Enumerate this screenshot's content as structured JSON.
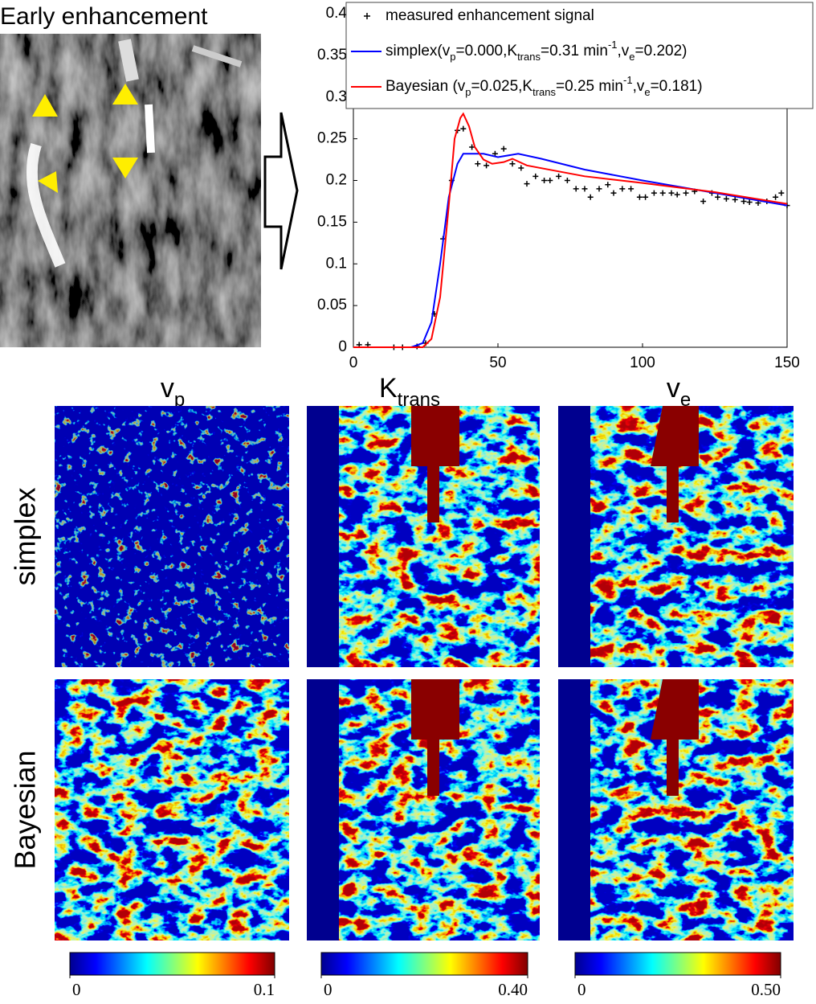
{
  "figure": {
    "image_title": "Early enhancement",
    "columns": [
      [
        "v",
        {
          "sub": "p"
        }
      ],
      [
        "K",
        {
          "sub": "trans"
        }
      ],
      [
        "v",
        {
          "sub": "e"
        }
      ]
    ],
    "rows": [
      "simplex",
      "Bayesian"
    ],
    "colorbars": [
      {
        "lim": [
          0,
          0.1
        ],
        "ticks": [
          0,
          0.1
        ]
      },
      {
        "lim": [
          0,
          0.4
        ],
        "ticks": [
          0,
          {
            "value": 0.4,
            "label": "0.40"
          }
        ]
      },
      {
        "lim": [
          0,
          0.5
        ],
        "ticks": [
          0,
          {
            "value": 0.5,
            "label": "0.50"
          }
        ]
      }
    ]
  },
  "chart_data": {
    "type": "line",
    "xlim": [
      0,
      150
    ],
    "xticks": [
      0,
      50,
      100,
      150
    ],
    "ylim": [
      0,
      0.4
    ],
    "yticks": [
      0,
      0.05,
      0.1,
      0.15,
      0.2,
      0.25,
      0.3,
      0.35,
      0.4
    ],
    "grid": false,
    "legend": "upper right",
    "series": [
      {
        "name": [
          "measured enhancement signal"
        ],
        "color": "#000000",
        "marker": "+",
        "x": [
          2,
          5,
          14,
          17,
          22,
          25,
          28,
          31,
          34,
          36,
          38,
          41,
          43,
          46,
          49,
          52,
          55,
          58,
          60,
          63,
          66,
          68,
          71,
          74,
          77,
          80,
          82,
          85,
          88,
          90,
          93,
          96,
          99,
          101,
          104,
          107,
          110,
          112,
          115,
          118,
          121,
          124,
          126,
          129,
          132,
          135,
          137,
          140,
          143,
          146,
          148,
          150
        ],
        "values": [
          0.003,
          0.003,
          0,
          0,
          0.001,
          0.005,
          0.04,
          0.13,
          0.2,
          0.26,
          0.262,
          0.24,
          0.22,
          0.218,
          0.232,
          0.238,
          0.22,
          0.215,
          0.196,
          0.205,
          0.2,
          0.2,
          0.205,
          0.2,
          0.19,
          0.19,
          0.18,
          0.19,
          0.195,
          0.185,
          0.19,
          0.19,
          0.18,
          0.18,
          0.185,
          0.185,
          0.185,
          0.183,
          0.185,
          0.187,
          0.175,
          0.185,
          0.18,
          0.178,
          0.177,
          0.175,
          0.174,
          0.173,
          0.175,
          0.18,
          0.185,
          0.17
        ]
      },
      {
        "name": [
          "simplex(v",
          {
            "sub": "p"
          },
          "=0.000,K",
          {
            "sub": "trans"
          },
          "=0.31 min",
          {
            "sup": "-1"
          },
          ",v",
          {
            "sub": "e"
          },
          "=0.202)"
        ],
        "color": "#0000ff",
        "x": [
          0,
          20,
          24,
          27,
          30,
          33,
          36,
          38,
          45,
          50,
          57,
          65,
          80,
          100,
          125,
          150
        ],
        "values": [
          0,
          0,
          0.005,
          0.03,
          0.1,
          0.18,
          0.22,
          0.232,
          0.232,
          0.228,
          0.232,
          0.226,
          0.213,
          0.2,
          0.185,
          0.17
        ]
      },
      {
        "name": [
          "Bayesian (v",
          {
            "sub": "p"
          },
          "=0.025,K",
          {
            "sub": "trans"
          },
          "=0.25 min",
          {
            "sup": "-1"
          },
          ",v",
          {
            "sub": "e"
          },
          "=0.181)"
        ],
        "color": "#ff0000",
        "x": [
          0,
          24,
          27,
          30,
          33,
          35,
          37,
          38,
          40,
          42,
          45,
          48,
          52,
          55,
          60,
          80,
          100,
          125,
          150
        ],
        "values": [
          0,
          0,
          0.01,
          0.06,
          0.17,
          0.25,
          0.275,
          0.28,
          0.265,
          0.24,
          0.225,
          0.22,
          0.222,
          0.226,
          0.218,
          0.205,
          0.197,
          0.186,
          0.172
        ]
      }
    ]
  }
}
